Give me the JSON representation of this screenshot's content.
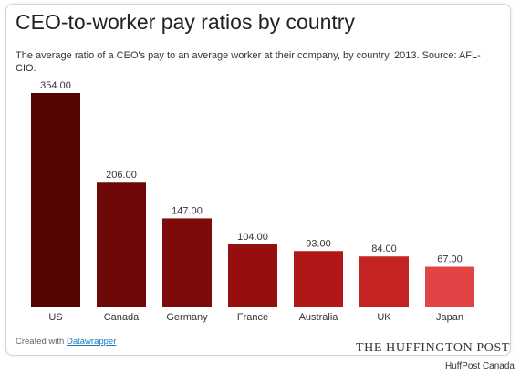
{
  "header": {
    "title": "CEO-to-worker pay ratios by country",
    "subtitle": "The average ratio of a CEO's pay to an average worker at their company, by country, 2013. Source: AFL-CIO."
  },
  "credit": {
    "prefix": "Created with ",
    "link_label": "Datawrapper"
  },
  "brand": "THE HUFFINGTON POST",
  "footer": "HuffPost Canada",
  "chart_data": {
    "type": "bar",
    "categories": [
      "US",
      "Canada",
      "Germany",
      "France",
      "Australia",
      "UK",
      "Japan"
    ],
    "values": [
      354,
      206,
      147,
      104,
      93,
      84,
      67
    ],
    "data_labels": [
      "354.00",
      "206.00",
      "147.00",
      "104.00",
      "93.00",
      "84.00",
      "67.00"
    ],
    "bar_colors": [
      "#560505",
      "#6e0707",
      "#7f0a0a",
      "#970e0e",
      "#b01717",
      "#c42424",
      "#e04444"
    ],
    "title": "CEO-to-worker pay ratios by country",
    "xlabel": "",
    "ylabel": "",
    "ylim": [
      0,
      354
    ],
    "grid": false,
    "legend": "none"
  }
}
